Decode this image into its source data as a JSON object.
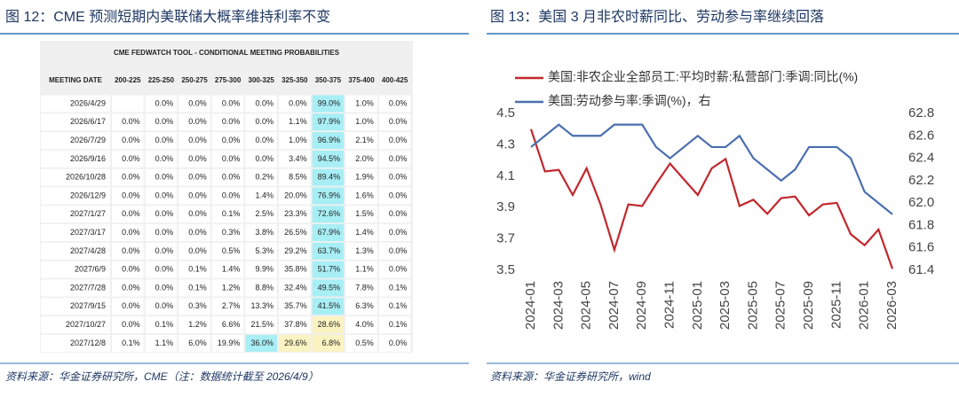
{
  "left": {
    "title": "图 12：CME 预测短期内美联储大概率维持利率不变",
    "table": {
      "caption": "CME FEDWATCH TOOL - CONDITIONAL MEETING PROBABILITIES",
      "columns": [
        "MEETING DATE",
        "200-225",
        "225-250",
        "250-275",
        "275-300",
        "300-325",
        "325-350",
        "350-375",
        "375-400",
        "400-425"
      ],
      "rows": [
        [
          "2026/4/29",
          null,
          "0.0%",
          "0.0%",
          "0.0%",
          "0.0%",
          "0.0%",
          "99.0%",
          "1.0%",
          "0.0%"
        ],
        [
          "2026/6/17",
          "0.0%",
          "0.0%",
          "0.0%",
          "0.0%",
          "0.0%",
          "1.1%",
          "97.9%",
          "1.0%",
          "0.0%"
        ],
        [
          "2026/7/29",
          "0.0%",
          "0.0%",
          "0.0%",
          "0.0%",
          "0.0%",
          "1.0%",
          "96.9%",
          "2.1%",
          "0.0%"
        ],
        [
          "2026/9/16",
          "0.0%",
          "0.0%",
          "0.0%",
          "0.0%",
          "0.0%",
          "3.4%",
          "94.5%",
          "2.0%",
          "0.0%"
        ],
        [
          "2026/10/28",
          "0.0%",
          "0.0%",
          "0.0%",
          "0.0%",
          "0.2%",
          "8.5%",
          "89.4%",
          "1.9%",
          "0.0%"
        ],
        [
          "2026/12/9",
          "0.0%",
          "0.0%",
          "0.0%",
          "0.0%",
          "1.4%",
          "20.0%",
          "76.9%",
          "1.6%",
          "0.0%"
        ],
        [
          "2027/1/27",
          "0.0%",
          "0.0%",
          "0.0%",
          "0.1%",
          "2.5%",
          "23.3%",
          "72.6%",
          "1.5%",
          "0.0%"
        ],
        [
          "2027/3/17",
          "0.0%",
          "0.0%",
          "0.0%",
          "0.3%",
          "3.8%",
          "26.5%",
          "67.9%",
          "1.4%",
          "0.0%"
        ],
        [
          "2027/4/28",
          "0.0%",
          "0.0%",
          "0.0%",
          "0.5%",
          "5.3%",
          "29.2%",
          "63.7%",
          "1.3%",
          "0.0%"
        ],
        [
          "2027/6/9",
          "0.0%",
          "0.0%",
          "0.1%",
          "1.4%",
          "9.9%",
          "35.8%",
          "51.7%",
          "1.1%",
          "0.0%"
        ],
        [
          "2027/7/28",
          "0.0%",
          "0.0%",
          "0.1%",
          "1.2%",
          "8.8%",
          "32.4%",
          "49.5%",
          "7.8%",
          "0.1%"
        ],
        [
          "2027/9/15",
          "0.0%",
          "0.0%",
          "0.3%",
          "2.7%",
          "13.3%",
          "35.7%",
          "41.5%",
          "6.3%",
          "0.1%"
        ],
        [
          "2027/10/27",
          "0.0%",
          "0.1%",
          "1.2%",
          "6.6%",
          "21.5%",
          "37.8%",
          "28.6%",
          "4.0%",
          "0.1%"
        ],
        [
          "2027/12/8",
          "0.1%",
          "1.1%",
          "6.0%",
          "19.9%",
          "36.0%",
          "29.6%",
          "6.8%",
          "0.5%",
          "0.0%"
        ]
      ]
    },
    "source": "资料来源：华金证券研究所，CME（注：数据统计截至 2026/4/9）"
  },
  "chart_data": {
    "type": "line",
    "title": "图 13：美国 3 月非农时薪同比、劳动参与率继续回落",
    "categories": [
      "2024-01",
      null,
      "2024-03",
      null,
      "2024-05",
      null,
      "2024-07",
      null,
      "2024-09",
      null,
      "2024-11",
      null,
      "2025-01",
      null,
      "2025-03",
      null,
      "2025-05",
      null,
      "2025-07",
      null,
      "2025-09",
      null,
      "2025-11",
      null,
      "2026-01",
      null,
      "2026-03"
    ],
    "series": [
      {
        "name": "美国:非农企业全部员工:平均时薪:私营部门:季调:同比(%)",
        "color": "#c0282d",
        "values": [
          4.4,
          4.13,
          4.14,
          3.98,
          4.15,
          3.92,
          3.63,
          3.92,
          3.91,
          4.05,
          4.18,
          4.08,
          3.98,
          4.15,
          4.21,
          3.91,
          3.95,
          3.86,
          3.96,
          3.97,
          3.85,
          3.92,
          3.93,
          3.73,
          3.66,
          3.76,
          3.51
        ]
      },
      {
        "name": "美国:劳动参与率:季调(%)，右",
        "color": "#4a6fae",
        "axis": "y2",
        "values": [
          62.5,
          62.6,
          62.7,
          62.6,
          62.6,
          62.6,
          62.7,
          62.7,
          62.7,
          62.5,
          62.4,
          62.5,
          62.6,
          62.5,
          62.5,
          62.6,
          62.4,
          62.3,
          62.2,
          62.3,
          62.5,
          62.5,
          62.5,
          62.4,
          62.1,
          62.0,
          61.9
        ]
      }
    ],
    "ylim": [
      3.5,
      4.5
    ],
    "yticks": [
      3.5,
      3.7,
      3.9,
      4.1,
      4.3,
      4.5
    ],
    "y2lim": [
      61.4,
      62.8
    ],
    "y2ticks": [
      61.4,
      61.6,
      61.8,
      {
        "value": 62,
        "label": "62.0"
      },
      62.2,
      62.4,
      62.6,
      62.8
    ],
    "legend": "top-left"
  },
  "right_source": "资料来源：华金证券研究所，wind"
}
